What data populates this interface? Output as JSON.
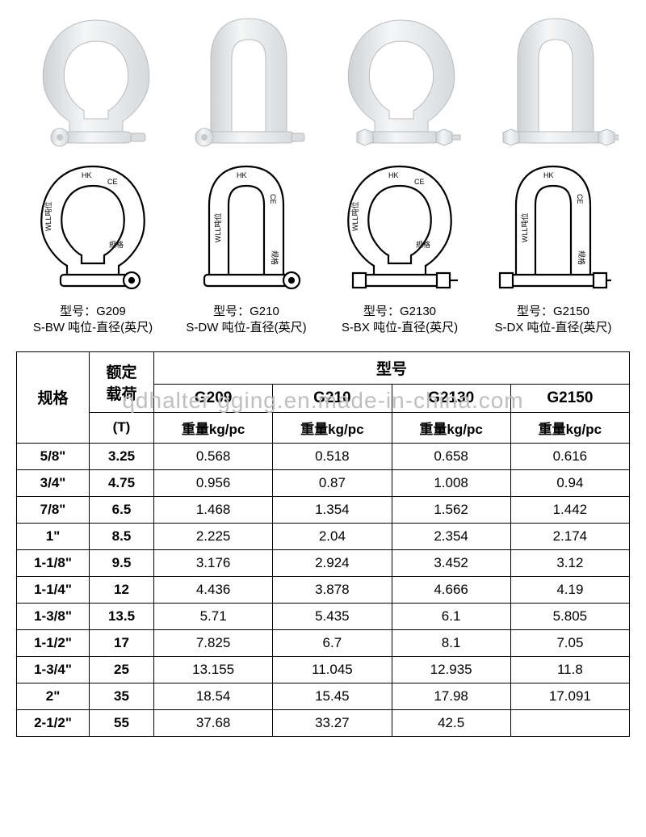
{
  "watermark": "qdhalter gging.en.made-in-china.com",
  "drawing_text": {
    "hk": "HK",
    "ce": "CE",
    "wll": "WLL吨位",
    "spec": "规格"
  },
  "models": [
    {
      "code": "G209",
      "model_label": "型号：G209",
      "sub_label": "S-BW 吨位-直径(英尺)"
    },
    {
      "code": "G210",
      "model_label": "型号：G210",
      "sub_label": "S-DW 吨位-直径(英尺)"
    },
    {
      "code": "G2130",
      "model_label": "型号：G2130",
      "sub_label": "S-BX 吨位-直径(英尺)"
    },
    {
      "code": "G2150",
      "model_label": "型号：G2150",
      "sub_label": "S-DX 吨位-直径(英尺)"
    }
  ],
  "table": {
    "headers": {
      "spec": "规格",
      "load_line1": "额定",
      "load_line2": "载荷",
      "load_unit": "(T)",
      "model_group": "型号",
      "model_cols": [
        "G209",
        "G210",
        "G2130",
        "G2150"
      ],
      "weight_label": "重量kg/pc"
    },
    "rows": [
      {
        "spec": "5/8\"",
        "load": "3.25",
        "w": [
          "0.568",
          "0.518",
          "0.658",
          "0.616"
        ]
      },
      {
        "spec": "3/4\"",
        "load": "4.75",
        "w": [
          "0.956",
          "0.87",
          "1.008",
          "0.94"
        ]
      },
      {
        "spec": "7/8\"",
        "load": "6.5",
        "w": [
          "1.468",
          "1.354",
          "1.562",
          "1.442"
        ]
      },
      {
        "spec": "1\"",
        "load": "8.5",
        "w": [
          "2.225",
          "2.04",
          "2.354",
          "2.174"
        ]
      },
      {
        "spec": "1-1/8\"",
        "load": "9.5",
        "w": [
          "3.176",
          "2.924",
          "3.452",
          "3.12"
        ]
      },
      {
        "spec": "1-1/4\"",
        "load": "12",
        "w": [
          "4.436",
          "3.878",
          "4.666",
          "4.19"
        ]
      },
      {
        "spec": "1-3/8\"",
        "load": "13.5",
        "w": [
          "5.71",
          "5.435",
          "6.1",
          "5.805"
        ]
      },
      {
        "spec": "1-1/2\"",
        "load": "17",
        "w": [
          "7.825",
          "6.7",
          "8.1",
          "7.05"
        ]
      },
      {
        "spec": "1-3/4\"",
        "load": "25",
        "w": [
          "13.155",
          "11.045",
          "12.935",
          "11.8"
        ]
      },
      {
        "spec": "2\"",
        "load": "35",
        "w": [
          "18.54",
          "15.45",
          "17.98",
          "17.091"
        ]
      },
      {
        "spec": "2-1/2\"",
        "load": "55",
        "w": [
          "37.68",
          "33.27",
          "42.5",
          ""
        ]
      }
    ]
  },
  "style": {
    "photo_fill": "#e8e9ea",
    "photo_shadow": "#cfd1d3",
    "photo_highlight": "#f5f6f7",
    "drawing_stroke": "#000000",
    "drawing_fill": "#ffffff",
    "table_border": "#000000",
    "text_color": "#000000",
    "watermark_color": "#bfbfbf",
    "font_size_table": 17,
    "font_size_header": 19,
    "font_size_caption": 15
  }
}
